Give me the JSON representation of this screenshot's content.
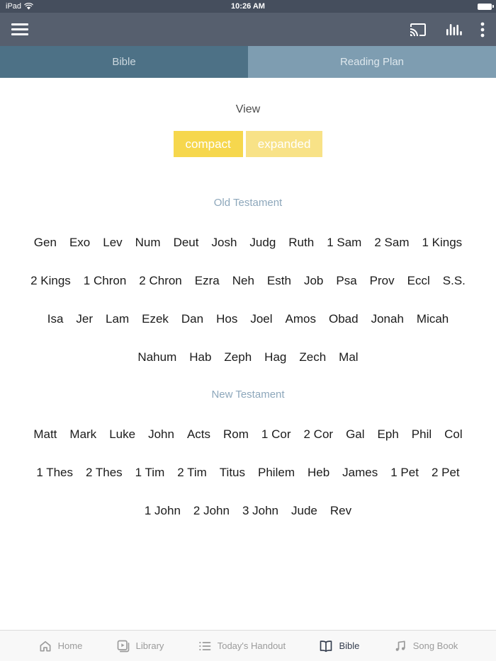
{
  "status_bar": {
    "carrier": "iPad",
    "time": "10:26 AM"
  },
  "toolbar": {
    "icons": [
      "menu-icon",
      "cast-icon",
      "bar-chart-icon",
      "overflow-menu-icon"
    ]
  },
  "tabs": [
    {
      "label": "Bible",
      "active": true
    },
    {
      "label": "Reading Plan",
      "active": false
    }
  ],
  "view_section": {
    "title": "View",
    "options": [
      {
        "label": "compact",
        "selected": true
      },
      {
        "label": "expanded",
        "selected": false
      }
    ]
  },
  "sections": [
    {
      "title": "Old Testament",
      "rows": [
        [
          "Gen",
          "Exo",
          "Lev",
          "Num",
          "Deut",
          "Josh",
          "Judg",
          "Ruth",
          "1 Sam",
          "2 Sam",
          "1 Kings"
        ],
        [
          "2 Kings",
          "1 Chron",
          "2 Chron",
          "Ezra",
          "Neh",
          "Esth",
          "Job",
          "Psa",
          "Prov",
          "Eccl",
          "S.S."
        ],
        [
          "Isa",
          "Jer",
          "Lam",
          "Ezek",
          "Dan",
          "Hos",
          "Joel",
          "Amos",
          "Obad",
          "Jonah",
          "Micah"
        ],
        [
          "Nahum",
          "Hab",
          "Zeph",
          "Hag",
          "Zech",
          "Mal"
        ]
      ]
    },
    {
      "title": "New Testament",
      "rows": [
        [
          "Matt",
          "Mark",
          "Luke",
          "John",
          "Acts",
          "Rom",
          "1 Cor",
          "2 Cor",
          "Gal",
          "Eph",
          "Phil",
          "Col"
        ],
        [
          "1 Thes",
          "2 Thes",
          "1 Tim",
          "2 Tim",
          "Titus",
          "Philem",
          "Heb",
          "James",
          "1 Pet",
          "2 Pet"
        ],
        [
          "1 John",
          "2 John",
          "3 John",
          "Jude",
          "Rev"
        ]
      ]
    }
  ],
  "bottom_nav": {
    "items": [
      {
        "label": "Home",
        "icon": "home-icon",
        "active": false
      },
      {
        "label": "Library",
        "icon": "library-icon",
        "active": false
      },
      {
        "label": "Today's Handout",
        "icon": "list-icon",
        "active": false
      },
      {
        "label": "Bible",
        "icon": "open-book-icon",
        "active": true
      },
      {
        "label": "Song Book",
        "icon": "music-note-icon",
        "active": false
      }
    ]
  },
  "colors": {
    "status_bar_bg": "#454e5d",
    "toolbar_bg": "#565f6e",
    "tab_active_bg": "#4d7186",
    "tab_inactive_bg": "#7e9db1",
    "toggle_selected": "#f6d74d",
    "toggle_unselected": "#f8e287",
    "section_title": "#8da7bb",
    "nav_active": "#343d4e",
    "nav_inactive": "#9b9b9b"
  }
}
